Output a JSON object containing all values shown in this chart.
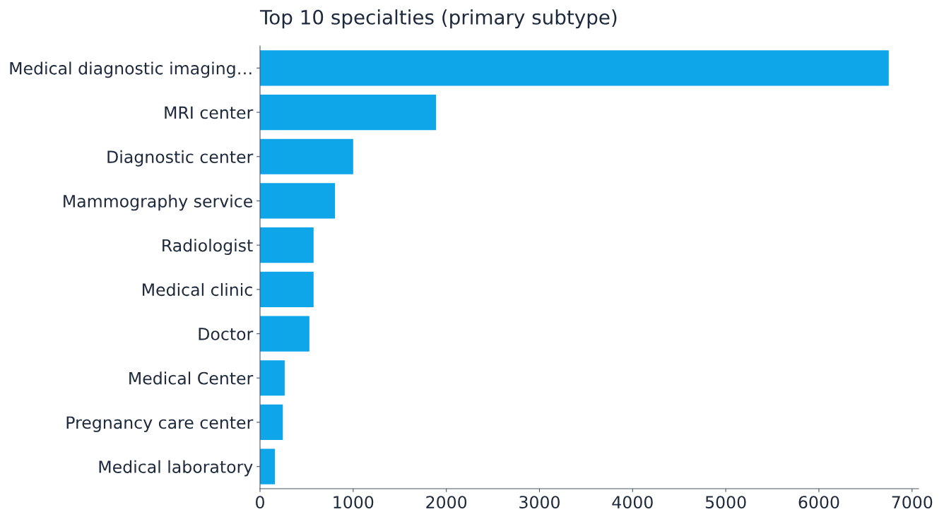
{
  "chart_data": {
    "type": "bar",
    "orientation": "horizontal",
    "title": "Top 10 specialties (primary subtype)",
    "categories": [
      "Medical diagnostic imaging…",
      "MRI center",
      "Diagnostic center",
      "Mammography service",
      "Radiologist",
      "Medical clinic",
      "Doctor",
      "Medical Center",
      "Pregnancy care center",
      "Medical laboratory"
    ],
    "values": [
      6750,
      1890,
      1000,
      805,
      575,
      575,
      530,
      265,
      245,
      160
    ],
    "color": "#0ea5e9",
    "xlim": [
      0,
      7070
    ],
    "xticks": [
      0,
      1000,
      2000,
      3000,
      4000,
      5000,
      6000,
      7000
    ],
    "grid": false
  }
}
